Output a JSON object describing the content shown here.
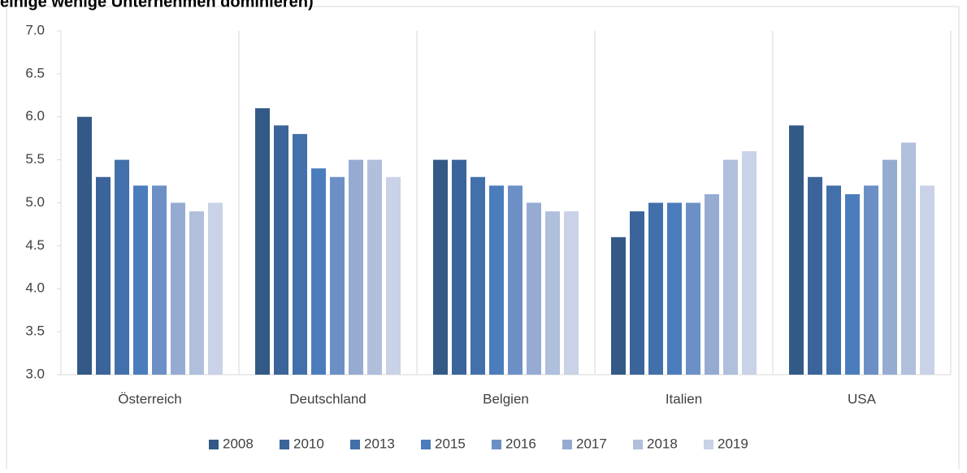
{
  "chart_data": {
    "type": "bar",
    "title": "einige wenige Unternehmen dominieren)",
    "categories": [
      "Österreich",
      "Deutschland",
      "Belgien",
      "Italien",
      "USA"
    ],
    "series": [
      {
        "name": "2008",
        "color": "#335a86",
        "values": [
          6.0,
          6.1,
          5.5,
          4.6,
          5.9
        ]
      },
      {
        "name": "2010",
        "color": "#3b649b",
        "values": [
          5.3,
          5.9,
          5.5,
          4.9,
          5.3
        ]
      },
      {
        "name": "2013",
        "color": "#4270aa",
        "values": [
          5.5,
          5.8,
          5.3,
          5.0,
          5.2
        ]
      },
      {
        "name": "2015",
        "color": "#4b7dbd",
        "values": [
          5.2,
          5.4,
          5.2,
          5.0,
          5.1
        ]
      },
      {
        "name": "2016",
        "color": "#6c90c6",
        "values": [
          5.2,
          5.3,
          5.2,
          5.0,
          5.2
        ]
      },
      {
        "name": "2017",
        "color": "#95abd2",
        "values": [
          5.0,
          5.5,
          5.0,
          5.1,
          5.5
        ]
      },
      {
        "name": "2018",
        "color": "#b0bfdc",
        "values": [
          4.9,
          5.5,
          4.9,
          5.5,
          5.7
        ]
      },
      {
        "name": "2019",
        "color": "#c9d2e6",
        "values": [
          5.0,
          5.3,
          4.9,
          5.6,
          5.2
        ]
      }
    ],
    "ylim": [
      3,
      7
    ],
    "yticks": [
      {
        "value": 3,
        "label": "3.0"
      },
      {
        "value": 3.5,
        "label": "3.5"
      },
      {
        "value": 4,
        "label": "4.0"
      },
      {
        "value": 4.5,
        "label": "4.5"
      },
      {
        "value": 5,
        "label": "5.0"
      },
      {
        "value": 5.5,
        "label": "5.5"
      },
      {
        "value": 6,
        "label": "6.0"
      },
      {
        "value": 6.5,
        "label": "6.5"
      },
      {
        "value": 7,
        "label": "7.0"
      }
    ],
    "legend": "bottom"
  }
}
